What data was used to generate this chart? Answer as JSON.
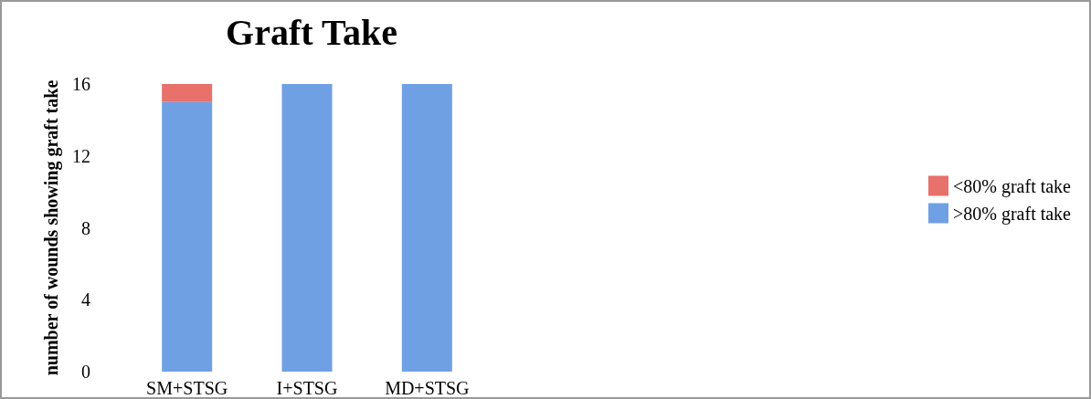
{
  "chart_data": {
    "type": "bar",
    "title": "Graft Take",
    "ylabel": "number of wounds showing graft take",
    "categories": [
      "SM+STSG",
      "I+STSG",
      "MD+STSG"
    ],
    "series": [
      {
        "name": ">80% graft take",
        "color": "#70a0e4",
        "values": [
          15,
          16,
          16
        ]
      },
      {
        "name": "<80% graft take",
        "color": "#e8716b",
        "values": [
          1,
          0,
          0
        ]
      }
    ],
    "stacked": true,
    "ylim": [
      0,
      16
    ],
    "yticks": [
      0,
      4,
      8,
      12,
      16
    ],
    "grid": false,
    "legend": "right"
  }
}
